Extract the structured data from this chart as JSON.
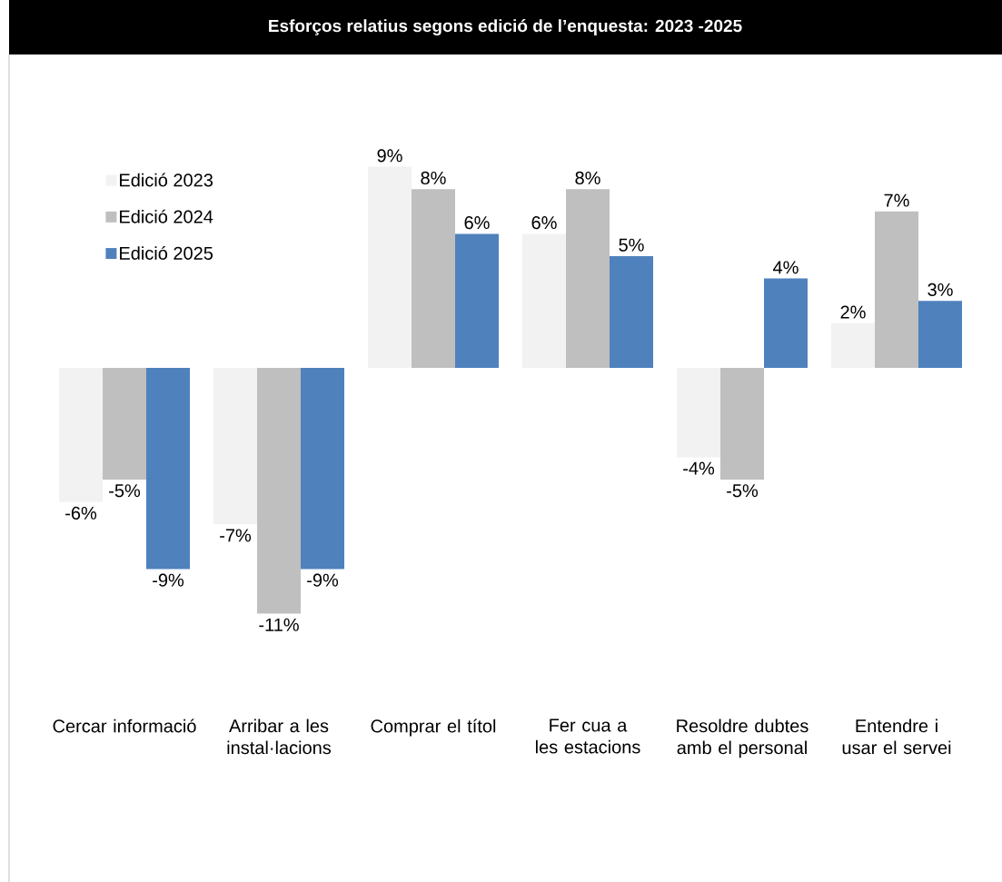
{
  "chart_data": {
    "type": "bar",
    "title": "Esforços relatius segons edició de l’enquesta: 2023 -2025",
    "categories": [
      "Cercar informació",
      "Arribar a les instal·lacions",
      "Comprar el títol",
      "Fer cua a les estacions",
      "Resoldre dubtes amb el personal",
      "Entendre i usar el servei"
    ],
    "series": [
      {
        "name": "Edició 2023",
        "color": "#f2f2f2",
        "values": [
          -6,
          -7,
          9,
          6,
          -4,
          2
        ],
        "value_labels": [
          "-6%",
          "-7%",
          "9%",
          "6%",
          "-4%",
          "2%"
        ]
      },
      {
        "name": "Edició 2024",
        "color": "#bfbfbf",
        "values": [
          -5,
          -11,
          8,
          8,
          -5,
          7
        ],
        "value_labels": [
          "-5%",
          "-11%",
          "8%",
          "8%",
          "-5%",
          "7%"
        ]
      },
      {
        "name": "Edició 2025",
        "color": "#4f81bd",
        "values": [
          -9,
          -9,
          6,
          5,
          4,
          3
        ],
        "value_labels": [
          "-9%",
          "-9%",
          "6%",
          "5%",
          "4%",
          "3%"
        ]
      }
    ],
    "legend": "top left"
  }
}
